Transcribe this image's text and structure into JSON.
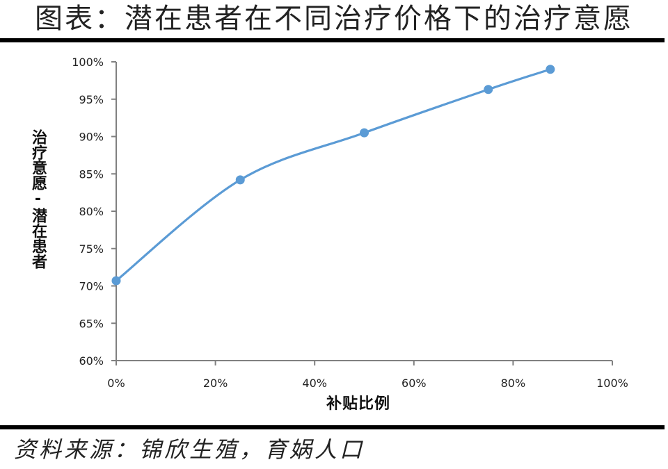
{
  "title": "图表：潜在患者在不同治疗价格下的治疗意愿",
  "source": "资料来源：锦欣生殖，育娲人口",
  "colors": {
    "series": "#5b9bd5",
    "axis": "#808080",
    "rules": "#000000"
  },
  "chart_data": {
    "type": "line",
    "title": "图表：潜在患者在不同治疗价格下的治疗意愿",
    "xlabel": "补贴比例",
    "ylabel": "治疗意愿-潜在患者",
    "x": [
      0,
      25,
      50,
      75,
      87.5
    ],
    "series": [
      {
        "name": "治疗意愿-潜在患者",
        "values": [
          70.7,
          84.2,
          90.5,
          96.3,
          99.0
        ],
        "smooth": true,
        "markers": true
      }
    ],
    "xlim": [
      0,
      100
    ],
    "ylim": [
      60,
      100
    ],
    "x_ticks": [
      "0%",
      "20%",
      "40%",
      "60%",
      "80%",
      "100%"
    ],
    "y_ticks": [
      "60%",
      "65%",
      "70%",
      "75%",
      "80%",
      "85%",
      "90%",
      "95%",
      "100%"
    ],
    "grid": false,
    "legend": "none"
  }
}
